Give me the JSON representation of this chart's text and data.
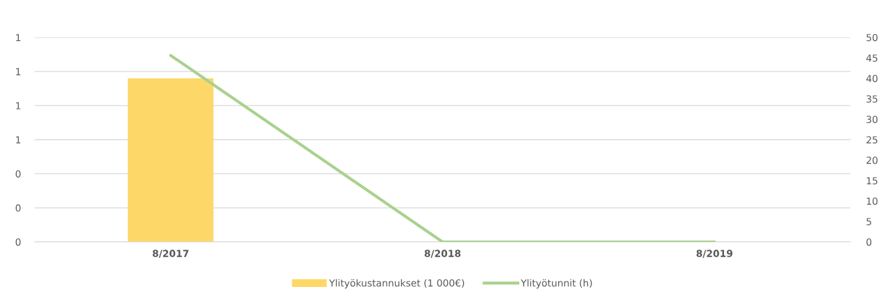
{
  "chart_data": {
    "type": "bar",
    "categories": [
      "8/2017",
      "8/2018",
      "8/2019"
    ],
    "series": [
      {
        "name": "Ylityökustannukset (1 000€)",
        "color": "#fdd868",
        "values": [
          0.96,
          null,
          null
        ]
      },
      {
        "name": "Ylityötunnit (h)",
        "type": "line",
        "axis": "y2",
        "color": "#a9d18e",
        "values": [
          45.6,
          0,
          0
        ]
      }
    ],
    "ylim": [
      0,
      1.2
    ],
    "yticks": [
      {
        "value": 0,
        "label": "0"
      },
      {
        "value": 0.2,
        "label": "0"
      },
      {
        "value": 0.4,
        "label": "0"
      },
      {
        "value": 0.6,
        "label": "1"
      },
      {
        "value": 0.8,
        "label": "1"
      },
      {
        "value": 1.0,
        "label": "1"
      },
      {
        "value": 1.2,
        "label": "1"
      }
    ],
    "y2lim": [
      0,
      50
    ],
    "y2ticks": [
      0,
      5,
      10,
      15,
      20,
      25,
      30,
      35,
      40,
      45,
      50
    ],
    "grid": "y",
    "legend": "bottom",
    "marker": "none",
    "line_style": "solid"
  }
}
